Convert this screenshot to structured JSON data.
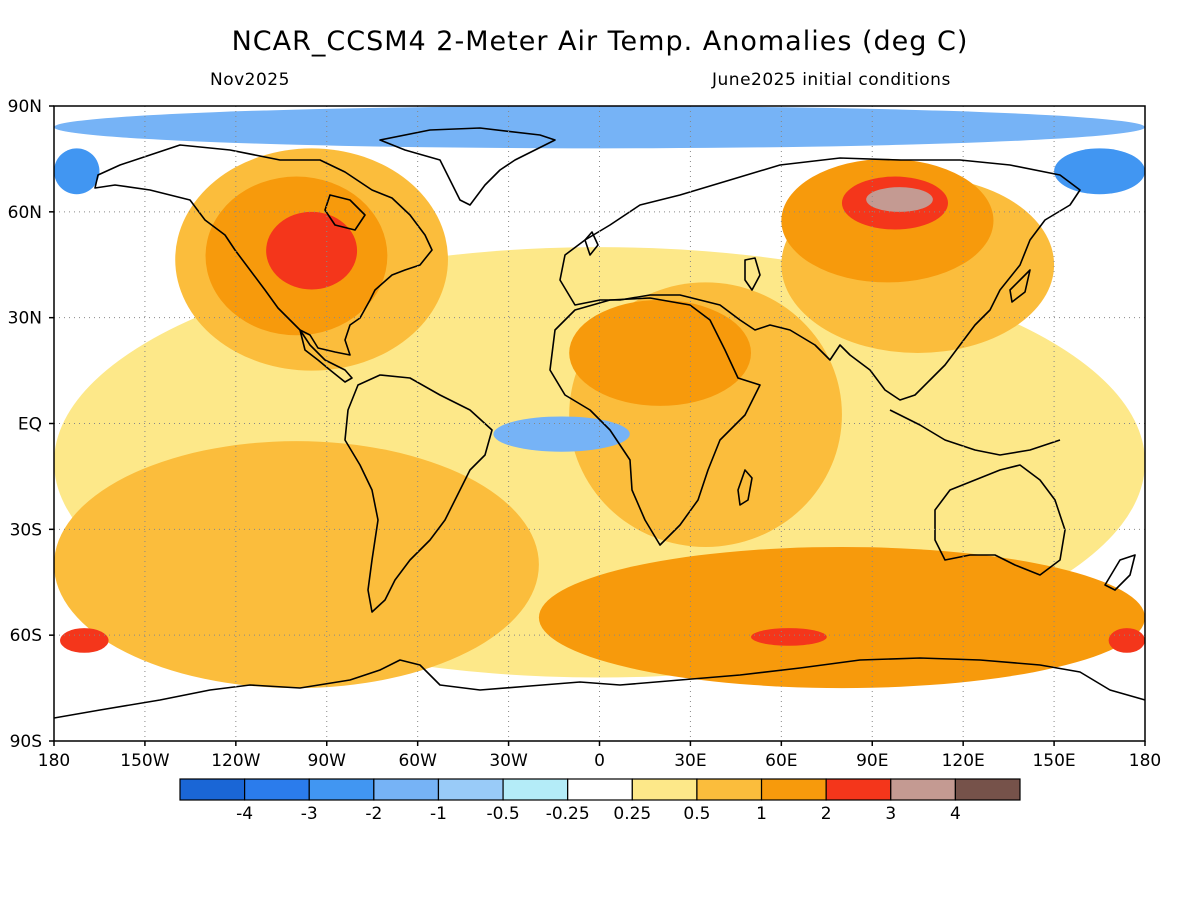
{
  "title": "NCAR_CCSM4 2-Meter Air Temp. Anomalies (deg C)",
  "subtitle_left": "Nov2025",
  "subtitle_right": "June2025 initial conditions",
  "y_ticks": [
    {
      "label": "90N",
      "lat": 90
    },
    {
      "label": "60N",
      "lat": 60
    },
    {
      "label": "30N",
      "lat": 30
    },
    {
      "label": "EQ",
      "lat": 0
    },
    {
      "label": "30S",
      "lat": -30
    },
    {
      "label": "60S",
      "lat": -60
    },
    {
      "label": "90S",
      "lat": -90
    }
  ],
  "x_ticks": [
    {
      "label": "180",
      "lon": -180
    },
    {
      "label": "150W",
      "lon": -150
    },
    {
      "label": "120W",
      "lon": -120
    },
    {
      "label": "90W",
      "lon": -90
    },
    {
      "label": "60W",
      "lon": -60
    },
    {
      "label": "30W",
      "lon": -30
    },
    {
      "label": "0",
      "lon": 0
    },
    {
      "label": "30E",
      "lon": 30
    },
    {
      "label": "60E",
      "lon": 60
    },
    {
      "label": "90E",
      "lon": 90
    },
    {
      "label": "120E",
      "lon": 120
    },
    {
      "label": "150E",
      "lon": 150
    },
    {
      "label": "180",
      "lon": 180
    }
  ],
  "colorbar": {
    "colors": [
      "#1a66d6",
      "#2b7cec",
      "#4196f2",
      "#76b3f6",
      "#99cbf8",
      "#b4ecf8",
      "#ffffff",
      "#fde889",
      "#fbbd3c",
      "#f79a0c",
      "#f4361b",
      "#c49a92",
      "#76524a"
    ],
    "labels": [
      "-4",
      "-3",
      "-2",
      "-1",
      "-0.5",
      "-0.25",
      "0.25",
      "0.5",
      "1",
      "2",
      "3",
      "4"
    ]
  },
  "anomaly_regions": [
    {
      "level": "ge_0_5",
      "color": "#fde889",
      "lon": [
        -180,
        180
      ],
      "lat": [
        -72,
        50
      ]
    },
    {
      "level": "ge_1",
      "color": "#fbbd3c",
      "lon": [
        -180,
        -20
      ],
      "lat": [
        -75,
        -5
      ]
    },
    {
      "level": "ge_1",
      "color": "#fbbd3c",
      "lon": [
        -140,
        -50
      ],
      "lat": [
        15,
        78
      ]
    },
    {
      "level": "ge_1",
      "color": "#fbbd3c",
      "lon": [
        -10,
        80
      ],
      "lat": [
        -35,
        40
      ]
    },
    {
      "level": "ge_1",
      "color": "#fbbd3c",
      "lon": [
        60,
        150
      ],
      "lat": [
        20,
        70
      ]
    },
    {
      "level": "ge_2",
      "color": "#f79a0c",
      "lon": [
        -20,
        180
      ],
      "lat": [
        -75,
        -35
      ]
    },
    {
      "level": "ge_2",
      "color": "#f79a0c",
      "lon": [
        -130,
        -70
      ],
      "lat": [
        25,
        70
      ]
    },
    {
      "level": "ge_2",
      "color": "#f79a0c",
      "lon": [
        60,
        130
      ],
      "lat": [
        40,
        75
      ]
    },
    {
      "level": "ge_2",
      "color": "#f79a0c",
      "lon": [
        -10,
        50
      ],
      "lat": [
        5,
        35
      ]
    },
    {
      "level": "ge_3",
      "color": "#f4361b",
      "lon": [
        -110,
        -80
      ],
      "lat": [
        38,
        60
      ]
    },
    {
      "level": "ge_3",
      "color": "#f4361b",
      "lon": [
        80,
        115
      ],
      "lat": [
        55,
        70
      ]
    },
    {
      "level": "ge_3",
      "color": "#f4361b",
      "lon": [
        -178,
        -162
      ],
      "lat": [
        -65,
        -58
      ]
    },
    {
      "level": "ge_3",
      "color": "#f4361b",
      "lon": [
        168,
        180
      ],
      "lat": [
        -65,
        -58
      ]
    },
    {
      "level": "ge_3",
      "color": "#f4361b",
      "lon": [
        50,
        75
      ],
      "lat": [
        -63,
        -58
      ]
    },
    {
      "level": "ge_4",
      "color": "#c49a92",
      "lon": [
        88,
        110
      ],
      "lat": [
        60,
        67
      ]
    },
    {
      "level": "le_neg_1",
      "color": "#76b3f6",
      "lon": [
        -180,
        180
      ],
      "lat": [
        78,
        90
      ]
    },
    {
      "level": "le_neg_1",
      "color": "#76b3f6",
      "lon": [
        -35,
        10
      ],
      "lat": [
        -8,
        2
      ]
    },
    {
      "level": "le_neg_2",
      "color": "#4196f2",
      "lon": [
        150,
        180
      ],
      "lat": [
        65,
        78
      ]
    },
    {
      "level": "le_neg_2",
      "color": "#4196f2",
      "lon": [
        -180,
        -165
      ],
      "lat": [
        65,
        78
      ]
    }
  ]
}
